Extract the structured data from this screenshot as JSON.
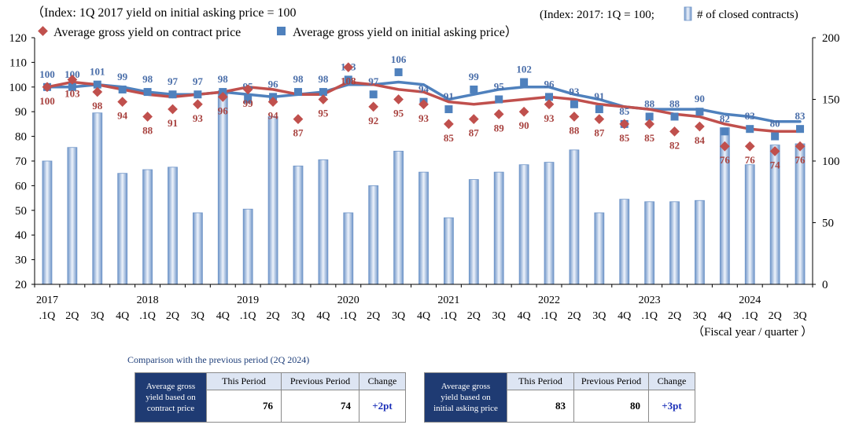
{
  "chart_data": {
    "type": "bar+line",
    "title_left": "（Index: 1Q 2017 yield on initial asking price = 100",
    "title_right": "(Index: 2017: 1Q = 100;",
    "legend_bar_label": "# of closed contracts)",
    "legend": [
      {
        "name": "Average gross yield on contract price",
        "marker": "diamond",
        "color": "#c0504d"
      },
      {
        "name": "Average gross yield on initial asking price）",
        "marker": "square",
        "color": "#4f81bd"
      }
    ],
    "xlabel": "（Fiscal year / quarter ）",
    "year_labels": [
      "2017",
      "2018",
      "2019",
      "2020",
      "2021",
      "2022",
      "2023",
      "2024"
    ],
    "year_label_indices": [
      0,
      4,
      8,
      12,
      16,
      20,
      24,
      28
    ],
    "quarter_labels": [
      ".1Q",
      "2Q",
      "3Q",
      "4Q",
      ".1Q",
      "2Q",
      "3Q",
      "4Q",
      ".1Q",
      "2Q",
      "3Q",
      "4Q",
      ".1Q",
      "2Q",
      "3Q",
      "4Q",
      ".1Q",
      "2Q",
      "3Q",
      "4Q",
      ".1Q",
      "2Q",
      "3Q",
      "4Q",
      ".1Q",
      "2Q",
      "3Q",
      "4Q",
      ".1Q",
      "2Q",
      "3Q"
    ],
    "y_left_ticks": [
      20,
      30,
      40,
      50,
      60,
      70,
      80,
      90,
      100,
      110,
      120
    ],
    "y_left_range": [
      20,
      120
    ],
    "y_right_ticks": [
      0,
      50,
      100,
      150,
      200
    ],
    "y_right_range": [
      0,
      200
    ],
    "contracts": [
      100,
      111,
      139,
      90,
      93,
      95,
      58,
      157,
      61,
      136,
      96,
      101,
      58,
      80,
      108,
      91,
      54,
      85,
      91,
      97,
      99,
      109,
      58,
      69,
      67,
      67,
      68,
      127,
      97,
      113,
      114
    ],
    "contract_price_yield": [
      100,
      103,
      98,
      94,
      88,
      91,
      93,
      96,
      99,
      94,
      87,
      95,
      108,
      92,
      95,
      93,
      85,
      87,
      89,
      90,
      93,
      88,
      87,
      85,
      85,
      82,
      84,
      76,
      76,
      74,
      76
    ],
    "contract_trend": [
      100,
      102,
      101,
      99,
      97,
      96,
      97,
      98,
      100,
      99,
      97,
      97,
      102,
      101,
      99,
      98,
      94,
      93,
      94,
      95,
      96,
      95,
      93,
      92,
      91,
      89,
      88,
      85,
      83,
      82,
      82
    ],
    "asking_price_yield": [
      100,
      100,
      101,
      99,
      98,
      97,
      97,
      98,
      95,
      96,
      98,
      98,
      103,
      97,
      106,
      94,
      91,
      99,
      95,
      102,
      96,
      93,
      91,
      85,
      88,
      88,
      90,
      82,
      83,
      80,
      83
    ],
    "asking_trend": [
      100,
      100,
      101,
      100,
      98,
      97,
      97,
      98,
      97,
      96,
      97,
      98,
      101,
      101,
      102,
      101,
      95,
      97,
      99,
      100,
      100,
      97,
      95,
      92,
      91,
      91,
      91,
      89,
      88,
      86,
      86
    ]
  },
  "comparison": {
    "title": "Comparison with the previous period (2Q 2024)",
    "col_this": "This Period",
    "col_prev": "Previous Period",
    "col_change": "Change",
    "contract": {
      "label_l1": "Average gross",
      "label_l2": "yield based on",
      "label_l3": "contract price",
      "this": "76",
      "prev": "74",
      "change": "+2pt"
    },
    "asking": {
      "label_l1": "Average gross",
      "label_l2": "yield based on",
      "label_l3": "initial asking price",
      "this": "83",
      "prev": "80",
      "change": "+3pt"
    }
  }
}
